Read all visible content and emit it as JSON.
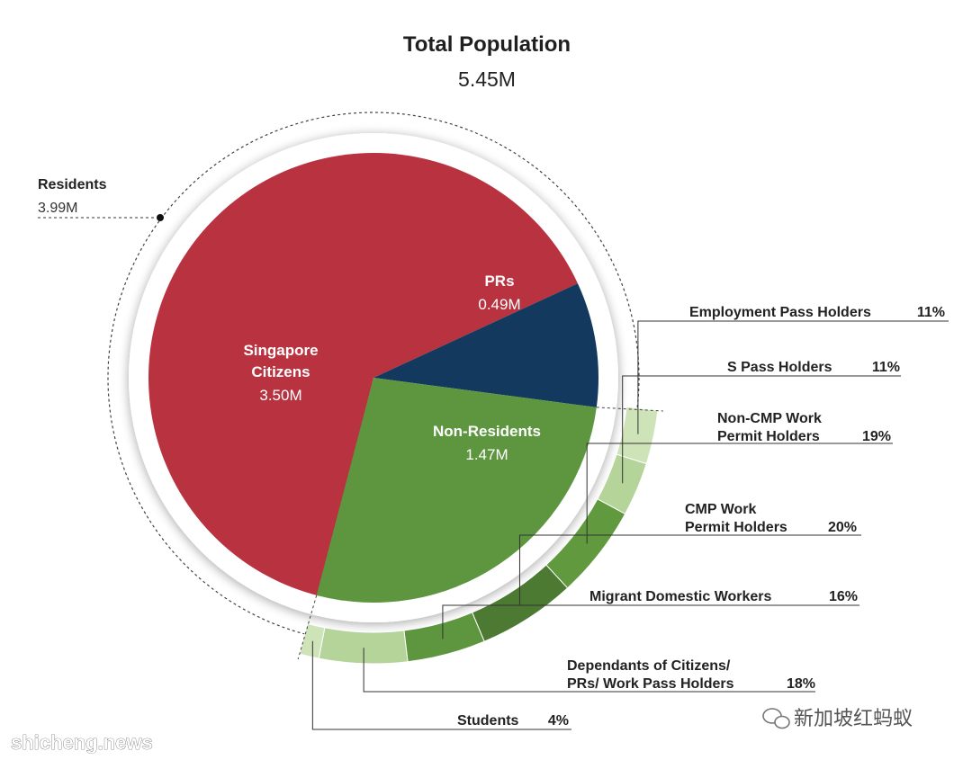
{
  "chart_data": {
    "type": "pie",
    "title": "Total Population",
    "subtitle": "5.45M",
    "total": 5.45,
    "residents": {
      "label": "Residents",
      "value_text": "3.99M",
      "value": 3.99
    },
    "slices": [
      {
        "name_lines": [
          "Singapore",
          "Citizens"
        ],
        "value_text": "3.50M",
        "value": 3.5,
        "color": "#b83240"
      },
      {
        "name_lines": [
          "PRs"
        ],
        "value_text": "0.49M",
        "value": 0.49,
        "color": "#133a5e"
      },
      {
        "name_lines": [
          "Non-Residents"
        ],
        "value_text": "1.47M",
        "value": 1.47,
        "color": "#5e9640"
      }
    ],
    "non_resident_breakdown": [
      {
        "label_lines": [
          "Employment Pass Holders"
        ],
        "pct_text": "11%",
        "pct": 11,
        "color": "#cfe3b8"
      },
      {
        "label_lines": [
          "S Pass Holders"
        ],
        "pct_text": "11%",
        "pct": 11,
        "color": "#b5d49a"
      },
      {
        "label_lines": [
          "Non-CMP Work",
          "Permit Holders"
        ],
        "pct_text": "19%",
        "pct": 19,
        "color": "#61993f"
      },
      {
        "label_lines": [
          "CMP Work",
          "Permit Holders"
        ],
        "pct_text": "20%",
        "pct": 20,
        "color": "#4d7a33"
      },
      {
        "label_lines": [
          "Migrant Domestic Workers"
        ],
        "pct_text": "16%",
        "pct": 16,
        "color": "#5e9640"
      },
      {
        "label_lines": [
          "Dependants of Citizens/",
          "PRs/ Work Pass Holders"
        ],
        "pct_text": "18%",
        "pct": 18,
        "color": "#b5d49a"
      },
      {
        "label_lines": [
          "Students"
        ],
        "pct_text": "4%",
        "pct": 4,
        "color": "#cfe3b8"
      }
    ]
  },
  "watermarks": {
    "left": "shicheng.news",
    "right": "新加坡红蚂蚁",
    "right_icon": "wechat-icon"
  }
}
